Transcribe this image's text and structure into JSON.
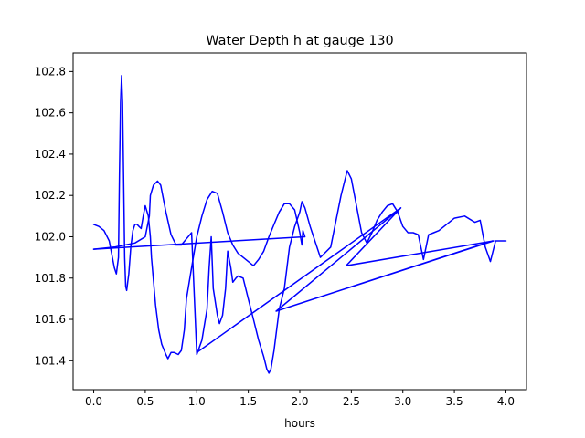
{
  "chart_data": {
    "type": "line",
    "title": "Water Depth h at gauge 130",
    "xlabel": "hours",
    "ylabel": "",
    "xlim": [
      -0.2,
      4.2
    ],
    "ylim": [
      101.26,
      102.89
    ],
    "xticks": [
      0.0,
      0.5,
      1.0,
      1.5,
      2.0,
      2.5,
      3.0,
      3.5,
      4.0
    ],
    "xtick_labels": [
      "0.0",
      "0.5",
      "1.0",
      "1.5",
      "2.0",
      "2.5",
      "3.0",
      "3.5",
      "4.0"
    ],
    "yticks": [
      101.4,
      101.6,
      101.8,
      102.0,
      102.2,
      102.4,
      102.6,
      102.8
    ],
    "ytick_labels": [
      "101.4",
      "101.6",
      "101.8",
      "102.0",
      "102.2",
      "102.4",
      "102.6",
      "102.8"
    ],
    "grid": false,
    "legend": "none",
    "series": [
      {
        "color": "#0000ff",
        "x": [
          0.0,
          0.05,
          0.1,
          0.15,
          0.2,
          0.22,
          0.24,
          0.25,
          0.26,
          0.27,
          0.28,
          0.29,
          0.3,
          0.31,
          0.32,
          0.33,
          0.34,
          0.36,
          0.38,
          0.4,
          0.42,
          0.44,
          0.46,
          0.48,
          0.5,
          0.53,
          0.55,
          0.56,
          0.6,
          0.63,
          0.66,
          0.7,
          0.72,
          0.75,
          0.78,
          0.82,
          0.85,
          0.88,
          0.9,
          0.95,
          1.0,
          1.05,
          1.1,
          1.15,
          1.2,
          1.25,
          1.3,
          1.35,
          1.4,
          1.45,
          1.5,
          1.55,
          1.6,
          1.65,
          1.7,
          1.75,
          1.8,
          1.85,
          1.9,
          1.95,
          2.0,
          2.02,
          2.03,
          2.05,
          0.0
        ],
        "y": [
          102.06,
          102.05,
          102.03,
          101.98,
          101.85,
          101.82,
          101.9,
          102.3,
          102.65,
          102.78,
          102.65,
          102.3,
          101.9,
          101.76,
          101.74,
          101.78,
          101.82,
          101.95,
          102.03,
          102.06,
          102.06,
          102.05,
          102.04,
          102.1,
          102.15,
          102.1,
          102.0,
          101.9,
          101.67,
          101.55,
          101.48,
          101.43,
          101.41,
          101.44,
          101.44,
          101.43,
          101.45,
          101.55,
          101.7,
          101.85,
          102.0,
          102.1,
          102.18,
          102.22,
          102.21,
          102.12,
          102.02,
          101.96,
          101.92,
          101.9,
          101.88,
          101.86,
          101.89,
          101.93,
          102.0,
          102.06,
          102.12,
          102.16,
          102.16,
          102.13,
          102.02,
          101.96,
          102.03,
          102.0,
          101.94
        ]
      },
      {
        "color": "#0000ff",
        "x": [
          0.0,
          0.2,
          0.4,
          0.5,
          0.54,
          0.55,
          0.58,
          0.62,
          0.65,
          0.7,
          0.75,
          0.8,
          0.85,
          0.9,
          0.95,
          1.0,
          1.05,
          1.1,
          1.12,
          1.14,
          1.16,
          1.2,
          1.22,
          1.25,
          1.28,
          1.3,
          1.33,
          1.35,
          1.38,
          1.4,
          1.45,
          1.5,
          1.55,
          1.6,
          1.65,
          1.68,
          1.7,
          1.72,
          1.75,
          1.8,
          1.85,
          1.9,
          1.95,
          2.0,
          2.02,
          2.05,
          2.1,
          2.2,
          2.3,
          2.4,
          2.46,
          2.5,
          2.55,
          2.6,
          2.65,
          2.7,
          2.75,
          2.8,
          2.85,
          2.9,
          2.95,
          3.0,
          3.05,
          3.1,
          3.15,
          3.2,
          3.25,
          3.3,
          3.35,
          3.4,
          3.5,
          3.6,
          3.7,
          3.75,
          3.8,
          3.85,
          3.9,
          4.0
        ],
        "y": [
          101.94,
          101.95,
          101.97,
          102.0,
          102.1,
          102.2,
          102.25,
          102.27,
          102.25,
          102.12,
          102.01,
          101.96,
          101.96,
          101.99,
          102.02,
          101.43,
          101.5,
          101.65,
          101.85,
          102.0,
          101.75,
          101.62,
          101.58,
          101.62,
          101.75,
          101.93,
          101.85,
          101.78,
          101.8,
          101.81,
          101.8,
          101.7,
          101.6,
          101.5,
          101.42,
          101.36,
          101.34,
          101.36,
          101.45,
          101.65,
          101.75,
          101.95,
          102.05,
          102.12,
          102.17,
          102.14,
          102.05,
          101.9,
          101.95,
          102.2,
          102.32,
          102.28,
          102.15,
          102.02,
          101.97,
          102.02,
          102.08,
          102.12,
          102.15,
          102.16,
          102.12,
          102.05,
          102.02,
          102.02,
          102.01,
          101.89,
          102.01,
          102.02,
          102.03,
          102.05,
          102.09,
          102.1,
          102.07,
          102.08,
          101.95,
          101.88,
          101.98,
          101.98
        ]
      },
      {
        "color": "#0000ff",
        "x": [
          1.0,
          2.98,
          1.77,
          2.98,
          2.45,
          3.88,
          1.77,
          3.87
        ],
        "y": [
          101.44,
          102.14,
          101.64,
          102.14,
          101.86,
          101.98,
          101.64,
          101.98
        ]
      }
    ]
  }
}
